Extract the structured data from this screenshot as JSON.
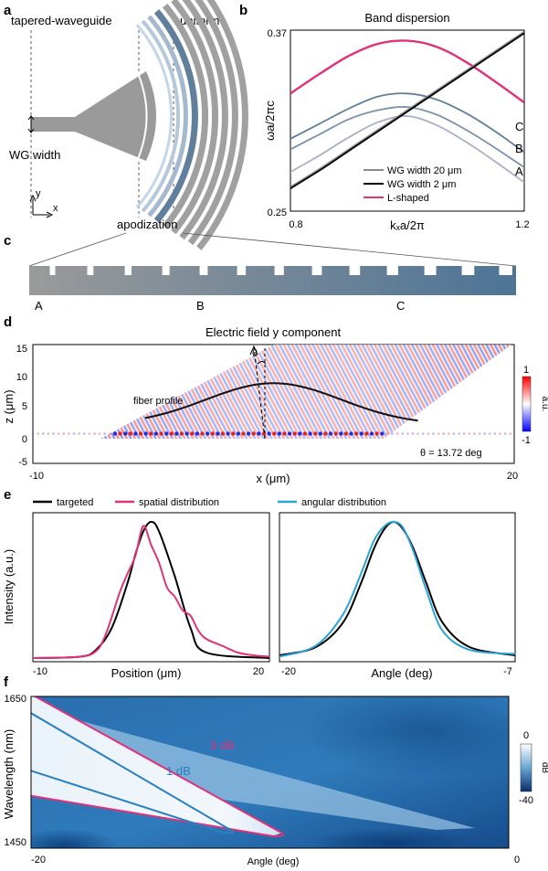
{
  "panel_letters": {
    "a": "a",
    "b": "b",
    "c": "c",
    "d": "d",
    "e": "e",
    "f": "f"
  },
  "panel_a": {
    "label_tapered": "tapered-waveguide",
    "label_uniform": "uniform",
    "label_wg_width": "WG width",
    "label_apodization": "apodization",
    "axis_y": "y",
    "axis_x": "x",
    "colors": {
      "grating": "#a0a0a0",
      "apod_light": "#c3d6e8",
      "apod_dark": "#5f7f9d"
    }
  },
  "panel_b": {
    "title": "Band dispersion",
    "xlabel": "kₓa/2π",
    "ylabel": "ωa/2πc",
    "curve_labels": [
      "C",
      "B",
      "A"
    ]
  },
  "panel_c": {
    "labels": [
      "A",
      "B",
      "C"
    ],
    "colors": {
      "start": "#9a9a9a",
      "end": "#4d7496"
    }
  },
  "panel_d": {
    "title": "Electric field y component",
    "xlabel": "x (μm)",
    "ylabel": "z (μm)",
    "annotation_fiber": "fiber profile",
    "annotation_theta": "θ = 13.72 deg",
    "theta_symbol": "θ",
    "colorbar_max": "1",
    "colorbar_min": "-1",
    "colorbar_unit": "a.u."
  },
  "panel_e": {
    "legend": [
      "targeted",
      "spatial distribution",
      "angular distribution"
    ],
    "left_xlabel": "Position (μm)",
    "right_xlabel": "Angle (deg)",
    "ylabel": "Intensity (a.u.)",
    "colors": {
      "targeted": "#000000",
      "spatial": "#e0327a",
      "angular": "#2aa3d8"
    }
  },
  "panel_f": {
    "xlabel": "Angle (deg)",
    "ylabel": "Wavelength (nm)",
    "label_3db": "3 dB",
    "label_1db": "1 dB",
    "colorbar_max": "0",
    "colorbar_min": "-40",
    "colorbar_unit": "dB"
  },
  "chart_data": [
    {
      "type": "line",
      "title": "Band dispersion",
      "xlabel": "kₓa/2π",
      "ylabel": "ωa/2πc",
      "xlim": [
        0.8,
        1.2
      ],
      "ylim": [
        0.25,
        0.37
      ],
      "x_ticks": [
        "0.8",
        "1.2"
      ],
      "y_ticks": [
        "0.25",
        "0.37"
      ],
      "legend": [
        "WG width 20 μm",
        "WG width 2 μm",
        "L-shaped"
      ],
      "legend_placement": "bottom-left",
      "x": [
        0.8,
        0.85,
        0.9,
        0.95,
        1.0,
        1.05,
        1.1,
        1.15,
        1.2
      ],
      "series": [
        {
          "name": "L-shaped",
          "color": "#e0327a",
          "values": [
            0.328,
            0.341,
            0.353,
            0.361,
            0.363,
            0.359,
            0.349,
            0.336,
            0.322
          ]
        },
        {
          "color": "#5f7f9d",
          "values": [
            0.298,
            0.308,
            0.318,
            0.326,
            0.328,
            0.324,
            0.315,
            0.303,
            0.289
          ]
        },
        {
          "color": "#7a92aa",
          "values": [
            0.291,
            0.301,
            0.311,
            0.317,
            0.319,
            0.314,
            0.304,
            0.292,
            0.279
          ]
        },
        {
          "color": "#a9afc6",
          "values": [
            0.276,
            0.287,
            0.299,
            0.309,
            0.313,
            0.307,
            0.296,
            0.283,
            0.269
          ]
        },
        {
          "name": "WG width 20 μm",
          "color": "#8a8a8a",
          "values": [
            0.266,
            0.278,
            0.291,
            0.304,
            0.317,
            0.33,
            0.343,
            0.356,
            0.369
          ]
        },
        {
          "name": "WG width 2 μm",
          "color": "#000000",
          "values": [
            0.265,
            0.277,
            0.29,
            0.303,
            0.316,
            0.329,
            0.342,
            0.355,
            0.368
          ]
        }
      ]
    },
    {
      "type": "heatmap",
      "title": "Electric field y component",
      "xlabel": "x (μm)",
      "ylabel": "z (μm)",
      "xlim": [
        -10,
        20
      ],
      "ylim": [
        -5,
        15
      ],
      "x_ticks": [
        "-10",
        "20"
      ],
      "y_ticks": [
        "15",
        "10",
        "5",
        "0",
        "-5"
      ],
      "colorbar_range": [
        -1,
        1
      ],
      "theta_deg": 13.72,
      "fiber_profile": {
        "center": 5,
        "sigma": 4.2,
        "peak_z": 8.5,
        "base_z": 1.5,
        "xlim": [
          -3,
          14
        ]
      }
    },
    {
      "type": "line",
      "xlabel": "Position (μm)",
      "ylabel": "Intensity (a.u.)",
      "xlim": [
        -10,
        20
      ],
      "x_ticks": [
        "-10",
        "20"
      ],
      "ylim": [
        0,
        1
      ],
      "series": [
        {
          "name": "targeted",
          "color": "#000000",
          "x": [
            -10,
            -4,
            -2,
            0,
            2,
            3,
            4,
            5,
            6,
            8,
            10,
            12,
            20
          ],
          "values": [
            0,
            0.01,
            0.06,
            0.22,
            0.55,
            0.76,
            0.93,
            1.0,
            0.93,
            0.6,
            0.22,
            0.04,
            0
          ]
        },
        {
          "name": "spatial distribution",
          "color": "#e0327a",
          "x": [
            -10,
            -4,
            -2,
            -1,
            0,
            1,
            2,
            3,
            4,
            5,
            6,
            7,
            8,
            9,
            10,
            11,
            12,
            14,
            16,
            18,
            20
          ],
          "values": [
            0,
            0.01,
            0.05,
            0.14,
            0.3,
            0.48,
            0.62,
            0.75,
            0.97,
            0.83,
            0.7,
            0.52,
            0.45,
            0.35,
            0.31,
            0.2,
            0.14,
            0.09,
            0.04,
            0.02,
            0.01
          ]
        }
      ]
    },
    {
      "type": "line",
      "xlabel": "Angle (deg)",
      "xlim": [
        -20,
        -7
      ],
      "x_ticks": [
        "-20",
        "-7"
      ],
      "ylim": [
        0,
        1
      ],
      "series": [
        {
          "name": "targeted",
          "color": "#000000",
          "x": [
            -20,
            -18,
            -16.5,
            -15.5,
            -14.8,
            -14.2,
            -13.7,
            -13.2,
            -12.6,
            -11.9,
            -11,
            -9.5,
            -7
          ],
          "values": [
            0.02,
            0.08,
            0.26,
            0.55,
            0.8,
            0.95,
            1.0,
            0.95,
            0.8,
            0.55,
            0.26,
            0.08,
            0.02
          ]
        },
        {
          "name": "angular distribution",
          "color": "#2aa3d8",
          "x": [
            -20,
            -18,
            -16.5,
            -15.5,
            -14.8,
            -14.2,
            -13.7,
            -13.2,
            -12.6,
            -11.9,
            -11,
            -9.5,
            -7
          ],
          "values": [
            0.01,
            0.09,
            0.32,
            0.62,
            0.86,
            0.97,
            1.0,
            0.96,
            0.78,
            0.5,
            0.2,
            0.06,
            0.03
          ]
        }
      ]
    },
    {
      "type": "heatmap",
      "xlabel": "Angle (deg)",
      "ylabel": "Wavelength (nm)",
      "xlim": [
        -20,
        0
      ],
      "ylim": [
        1450,
        1650
      ],
      "x_ticks": [
        "-20",
        "0"
      ],
      "y_ticks": [
        "1650",
        "1450"
      ],
      "colorbar_range": [
        -40,
        0
      ],
      "contours": [
        {
          "level": "3 dB",
          "color": "#e0327a",
          "points": [
            [
              -20,
              1653
            ],
            [
              -9.5,
              1470
            ],
            [
              -9.9,
              1466
            ],
            [
              -20,
              1519
            ]
          ]
        },
        {
          "level": "1 dB",
          "color": "#2a7fc0",
          "points": [
            [
              -20,
              1628
            ],
            [
              -11.6,
              1473
            ],
            [
              -12.0,
              1471
            ],
            [
              -20,
              1552
            ]
          ]
        }
      ]
    }
  ]
}
